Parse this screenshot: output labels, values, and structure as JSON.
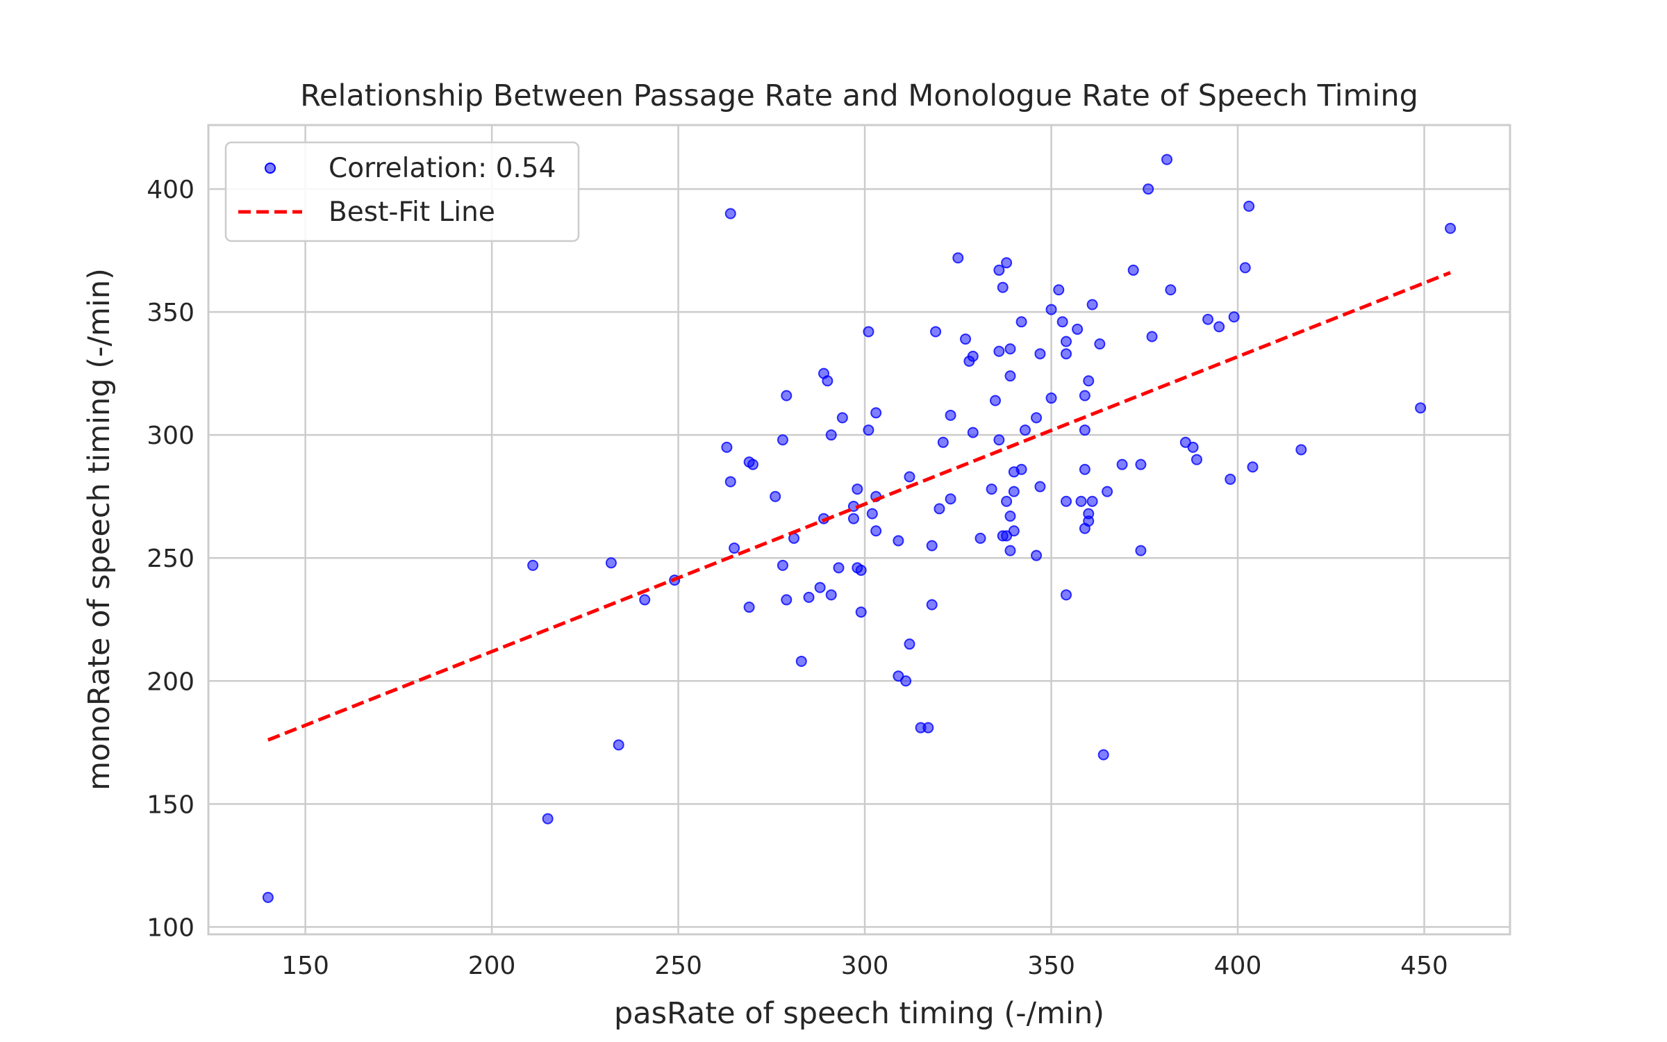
{
  "chart_data": {
    "type": "scatter",
    "title": "Relationship Between Passage Rate and Monologue Rate of Speech Timing",
    "xlabel": "pasRate of speech timing (-/min)",
    "ylabel": "monoRate of speech timing (-/min)",
    "xlim": [
      124,
      473
    ],
    "ylim": [
      97,
      426
    ],
    "xticks": [
      150,
      200,
      250,
      300,
      350,
      400,
      450
    ],
    "yticks": [
      100,
      150,
      200,
      250,
      300,
      350,
      400
    ],
    "grid": true,
    "legend_position": "top-left",
    "legend": {
      "scatter_label": "Correlation: 0.54",
      "line_label": "Best-Fit Line"
    },
    "colors": {
      "points": "#0000ff",
      "line": "#ff0000"
    },
    "best_fit": {
      "x": [
        140,
        457
      ],
      "y": [
        176,
        366
      ]
    },
    "points": [
      [
        140,
        112
      ],
      [
        211,
        247
      ],
      [
        215,
        144
      ],
      [
        232,
        248
      ],
      [
        234,
        174
      ],
      [
        241,
        233
      ],
      [
        249,
        241
      ],
      [
        263,
        295
      ],
      [
        264,
        281
      ],
      [
        264,
        390
      ],
      [
        265,
        254
      ],
      [
        269,
        230
      ],
      [
        269,
        289
      ],
      [
        270,
        288
      ],
      [
        276,
        275
      ],
      [
        278,
        298
      ],
      [
        278,
        247
      ],
      [
        279,
        316
      ],
      [
        279,
        233
      ],
      [
        281,
        258
      ],
      [
        283,
        208
      ],
      [
        285,
        234
      ],
      [
        288,
        238
      ],
      [
        289,
        266
      ],
      [
        289,
        325
      ],
      [
        290,
        322
      ],
      [
        291,
        300
      ],
      [
        291,
        235
      ],
      [
        293,
        246
      ],
      [
        294,
        307
      ],
      [
        297,
        271
      ],
      [
        297,
        266
      ],
      [
        298,
        278
      ],
      [
        298,
        246
      ],
      [
        299,
        245
      ],
      [
        299,
        228
      ],
      [
        301,
        342
      ],
      [
        301,
        302
      ],
      [
        302,
        268
      ],
      [
        303,
        309
      ],
      [
        303,
        275
      ],
      [
        303,
        261
      ],
      [
        309,
        257
      ],
      [
        309,
        202
      ],
      [
        311,
        200
      ],
      [
        312,
        283
      ],
      [
        312,
        215
      ],
      [
        315,
        181
      ],
      [
        317,
        181
      ],
      [
        318,
        255
      ],
      [
        318,
        231
      ],
      [
        319,
        342
      ],
      [
        320,
        270
      ],
      [
        321,
        297
      ],
      [
        323,
        308
      ],
      [
        323,
        274
      ],
      [
        325,
        372
      ],
      [
        327,
        339
      ],
      [
        328,
        330
      ],
      [
        329,
        332
      ],
      [
        329,
        301
      ],
      [
        331,
        258
      ],
      [
        334,
        278
      ],
      [
        335,
        314
      ],
      [
        336,
        334
      ],
      [
        336,
        298
      ],
      [
        336,
        367
      ],
      [
        337,
        360
      ],
      [
        337,
        259
      ],
      [
        338,
        370
      ],
      [
        338,
        273
      ],
      [
        338,
        259
      ],
      [
        339,
        335
      ],
      [
        339,
        324
      ],
      [
        339,
        267
      ],
      [
        339,
        253
      ],
      [
        340,
        285
      ],
      [
        340,
        277
      ],
      [
        340,
        261
      ],
      [
        342,
        286
      ],
      [
        342,
        346
      ],
      [
        343,
        302
      ],
      [
        346,
        307
      ],
      [
        346,
        251
      ],
      [
        347,
        333
      ],
      [
        347,
        279
      ],
      [
        350,
        351
      ],
      [
        350,
        315
      ],
      [
        352,
        359
      ],
      [
        353,
        346
      ],
      [
        354,
        338
      ],
      [
        354,
        333
      ],
      [
        354,
        273
      ],
      [
        354,
        235
      ],
      [
        357,
        343
      ],
      [
        358,
        273
      ],
      [
        359,
        316
      ],
      [
        359,
        302
      ],
      [
        359,
        286
      ],
      [
        359,
        262
      ],
      [
        360,
        322
      ],
      [
        360,
        268
      ],
      [
        360,
        265
      ],
      [
        361,
        353
      ],
      [
        361,
        273
      ],
      [
        363,
        337
      ],
      [
        364,
        170
      ],
      [
        365,
        277
      ],
      [
        369,
        288
      ],
      [
        372,
        367
      ],
      [
        374,
        288
      ],
      [
        374,
        253
      ],
      [
        376,
        400
      ],
      [
        377,
        340
      ],
      [
        381,
        412
      ],
      [
        382,
        359
      ],
      [
        386,
        297
      ],
      [
        388,
        295
      ],
      [
        389,
        290
      ],
      [
        392,
        347
      ],
      [
        395,
        344
      ],
      [
        398,
        282
      ],
      [
        399,
        348
      ],
      [
        402,
        368
      ],
      [
        403,
        393
      ],
      [
        404,
        287
      ],
      [
        417,
        294
      ],
      [
        449,
        311
      ],
      [
        457,
        384
      ]
    ]
  }
}
